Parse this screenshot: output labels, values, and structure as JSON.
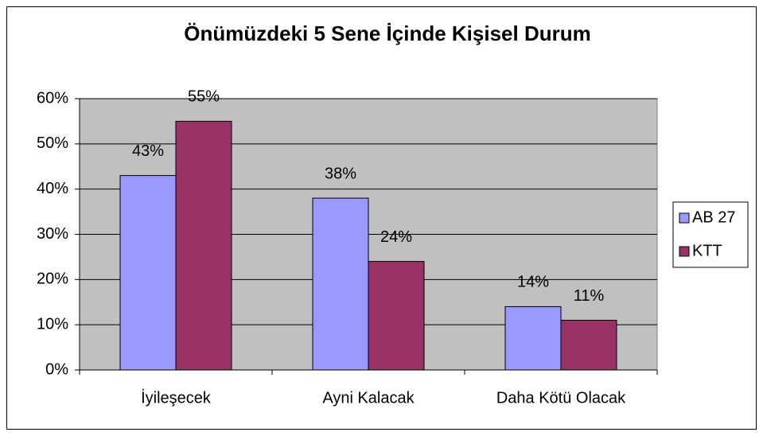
{
  "chart_data": {
    "type": "bar",
    "title": "Önümüzdeki 5 Sene İçinde Kişisel Durum",
    "categories": [
      "İyileşecek",
      "Ayni Kalacak",
      "Daha Kötü Olacak"
    ],
    "series": [
      {
        "name": "AB 27",
        "color": "#9999ff",
        "values": [
          43,
          38,
          14
        ],
        "value_labels": [
          "43%",
          "38%",
          "14%"
        ]
      },
      {
        "name": "KTT",
        "color": "#993366",
        "values": [
          55,
          24,
          11
        ],
        "value_labels": [
          "55%",
          "24%",
          "11%"
        ]
      }
    ],
    "ylim": [
      0,
      60
    ],
    "yticks": [
      {
        "value": 0,
        "label": "0%"
      },
      {
        "value": 10,
        "label": "10%"
      },
      {
        "value": 20,
        "label": "20%"
      },
      {
        "value": 30,
        "label": "30%"
      },
      {
        "value": 40,
        "label": "40%"
      },
      {
        "value": 50,
        "label": "50%"
      },
      {
        "value": 60,
        "label": "60%"
      }
    ],
    "grid": true,
    "legend": "right",
    "plot_background": "#c0c0c0"
  }
}
